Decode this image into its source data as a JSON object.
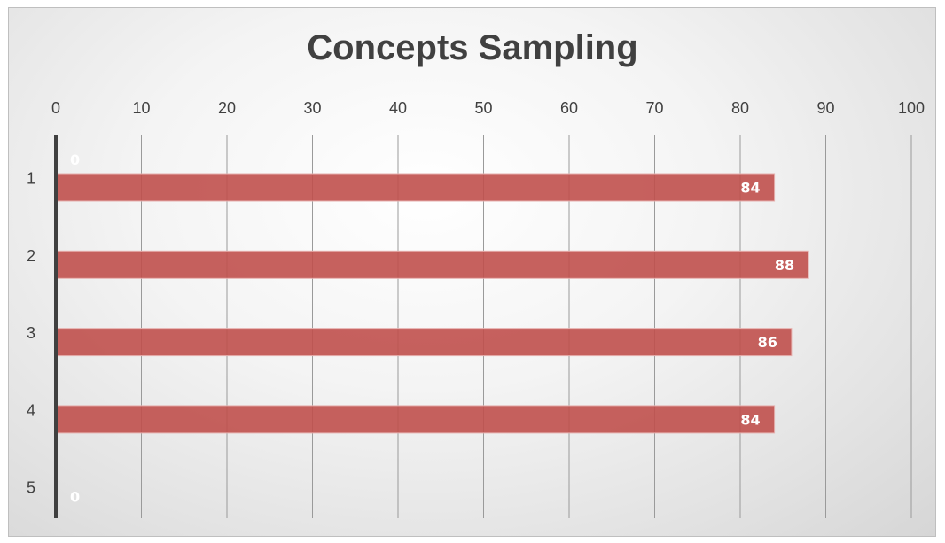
{
  "chart_data": {
    "type": "bar",
    "orientation": "horizontal",
    "title": "Concepts Sampling",
    "categories": [
      "1",
      "2",
      "3",
      "4",
      "5"
    ],
    "values": [
      84,
      88,
      86,
      84,
      0
    ],
    "data_labels": [
      "84",
      "88",
      "86",
      "84",
      "0"
    ],
    "extra_label": "0",
    "xlim": [
      0,
      100
    ],
    "x_ticks": [
      "0",
      "10",
      "20",
      "30",
      "40",
      "50",
      "60",
      "70",
      "80",
      "90",
      "100"
    ],
    "x_axis_position": "top",
    "grid": true,
    "legend": "none",
    "bar_color": "#c0504d",
    "bar_stroke": "#e6b0ae"
  }
}
